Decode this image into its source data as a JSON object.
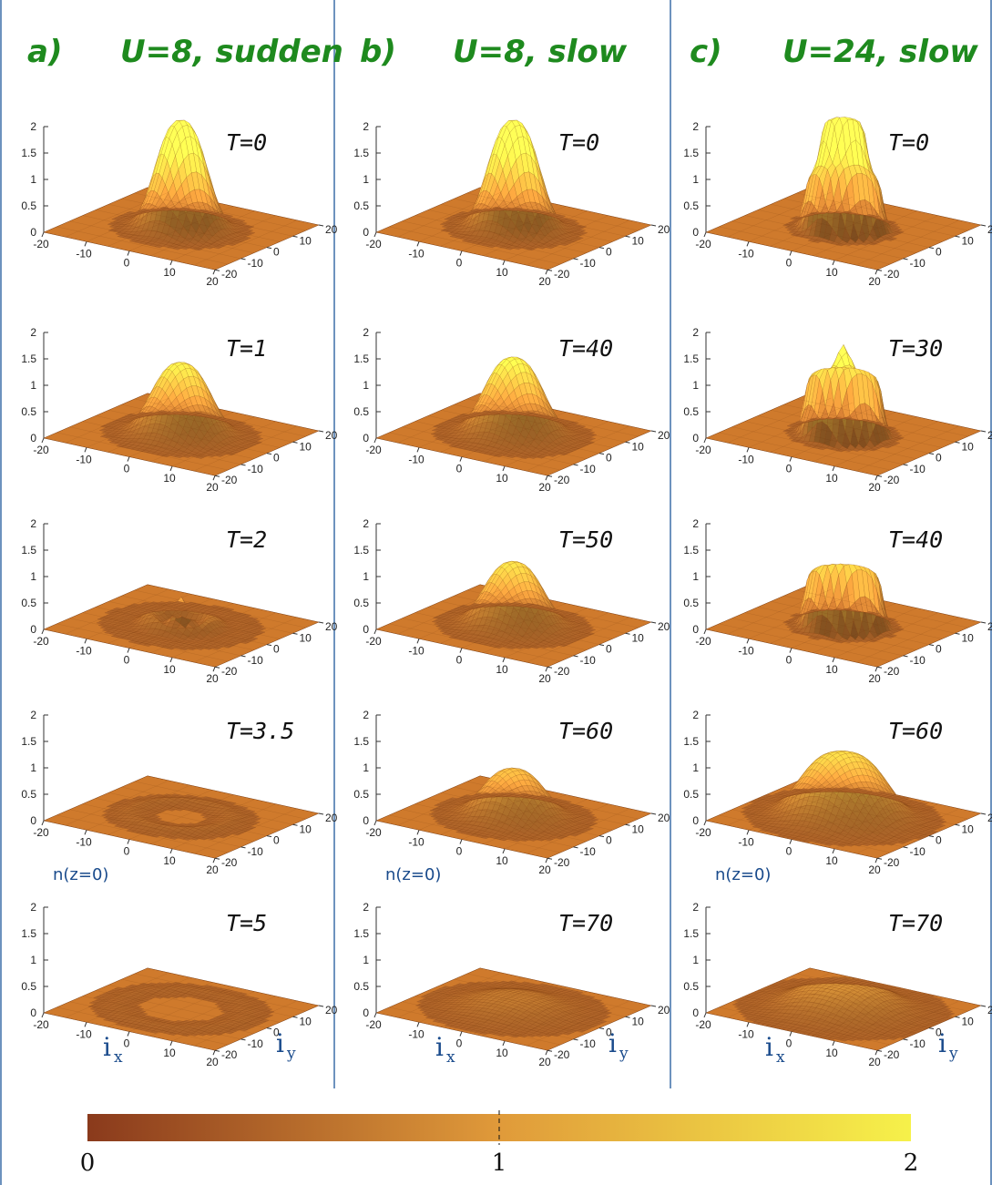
{
  "figure": {
    "colors": {
      "divider": "#3d6fa8",
      "heading": "#1e8a1e",
      "axis_text": "#1a4b8c",
      "surface_low": "#8a3a1c",
      "surface_mid": "#e09a3a",
      "surface_high": "#f6f14a"
    }
  },
  "chart_data": [
    {
      "type": "surface",
      "column": "a",
      "column_label": "a)",
      "title": "U=8, sudden",
      "time_label": "T=0",
      "zlim": [
        0,
        2
      ],
      "zticks": [
        "0",
        "0.5",
        "1",
        "1.5",
        "2"
      ],
      "xticks": [
        "-20",
        "-10",
        "0",
        "10",
        "20"
      ],
      "yticks": [
        "-20",
        "-10",
        "0",
        "10",
        "20"
      ],
      "shape": "peak",
      "peak": 2.05,
      "width": 6.5
    },
    {
      "type": "surface",
      "column": "a",
      "title": "U=8, sudden",
      "time_label": "T=1",
      "zlim": [
        0,
        2
      ],
      "zticks": [
        "0",
        "0.5",
        "1",
        "1.5",
        "2"
      ],
      "xticks": [
        "-20",
        "-10",
        "0",
        "10",
        "20"
      ],
      "yticks": [
        "-20",
        "-10",
        "0",
        "10",
        "20"
      ],
      "shape": "peak",
      "peak": 1.35,
      "width": 7.5
    },
    {
      "type": "surface",
      "column": "a",
      "title": "U=8, sudden",
      "time_label": "T=2",
      "zlim": [
        0,
        2
      ],
      "zticks": [
        "0",
        "0.5",
        "1",
        "1.5",
        "2"
      ],
      "xticks": [
        "-20",
        "-10",
        "0",
        "10",
        "20"
      ],
      "yticks": [
        "-20",
        "-10",
        "0",
        "10",
        "20"
      ],
      "shape": "ripple",
      "peak": 0.55,
      "width": 7.0
    },
    {
      "type": "surface",
      "column": "a",
      "title": "U=8, sudden",
      "time_label": "T=3.5",
      "zlim": [
        0,
        2
      ],
      "zticks": [
        "0",
        "0.5",
        "1",
        "1.5",
        "2"
      ],
      "xticks": [
        "-20",
        "-10",
        "0",
        "10",
        "20"
      ],
      "yticks": [
        "-20",
        "-10",
        "0",
        "10",
        "20"
      ],
      "shape": "ring",
      "peak": 0.08,
      "width": 10.0
    },
    {
      "type": "surface",
      "column": "a",
      "title": "U=8, sudden",
      "time_label": "T=5",
      "zlabel": "n(z=0)",
      "xlabel": "i",
      "xlabel_sub": "x",
      "ylabel": "i",
      "ylabel_sub": "y",
      "zlim": [
        0,
        2
      ],
      "zticks": [
        "0",
        "0.5",
        "1",
        "1.5",
        "2"
      ],
      "xticks": [
        "-20",
        "-10",
        "0",
        "10",
        "20"
      ],
      "yticks": [
        "-20",
        "-10",
        "0",
        "10",
        "20"
      ],
      "shape": "ring",
      "peak": 0.04,
      "width": 13.0
    },
    {
      "type": "surface",
      "column": "b",
      "column_label": "b)",
      "title": "U=8, slow",
      "time_label": "T=0",
      "zlim": [
        0,
        2
      ],
      "zticks": [
        "0",
        "0.5",
        "1",
        "1.5",
        "2"
      ],
      "xticks": [
        "-20",
        "-10",
        "0",
        "10",
        "20"
      ],
      "yticks": [
        "-20",
        "-10",
        "0",
        "10",
        "20"
      ],
      "shape": "peak",
      "peak": 2.05,
      "width": 6.5
    },
    {
      "type": "surface",
      "column": "b",
      "title": "U=8, slow",
      "time_label": "T=40",
      "zlim": [
        0,
        2
      ],
      "zticks": [
        "0",
        "0.5",
        "1",
        "1.5",
        "2"
      ],
      "xticks": [
        "-20",
        "-10",
        "0",
        "10",
        "20"
      ],
      "yticks": [
        "-20",
        "-10",
        "0",
        "10",
        "20"
      ],
      "shape": "peak",
      "peak": 1.45,
      "width": 7.5
    },
    {
      "type": "surface",
      "column": "b",
      "title": "U=8, slow",
      "time_label": "T=50",
      "zlim": [
        0,
        2
      ],
      "zticks": [
        "0",
        "0.5",
        "1",
        "1.5",
        "2"
      ],
      "xticks": [
        "-20",
        "-10",
        "0",
        "10",
        "20"
      ],
      "yticks": [
        "-20",
        "-10",
        "0",
        "10",
        "20"
      ],
      "shape": "peak",
      "peak": 1.2,
      "width": 7.5
    },
    {
      "type": "surface",
      "column": "b",
      "title": "U=8, slow",
      "time_label": "T=60",
      "zlim": [
        0,
        2
      ],
      "zticks": [
        "0",
        "0.5",
        "1",
        "1.5",
        "2"
      ],
      "xticks": [
        "-20",
        "-10",
        "0",
        "10",
        "20"
      ],
      "yticks": [
        "-20",
        "-10",
        "0",
        "10",
        "20"
      ],
      "shape": "peak",
      "peak": 0.9,
      "width": 8.0
    },
    {
      "type": "surface",
      "column": "b",
      "title": "U=8, slow",
      "time_label": "T=70",
      "zlabel": "n(z=0)",
      "xlabel": "i",
      "xlabel_sub": "x",
      "ylabel": "i",
      "ylabel_sub": "y",
      "zlim": [
        0,
        2
      ],
      "zticks": [
        "0",
        "0.5",
        "1",
        "1.5",
        "2"
      ],
      "xticks": [
        "-20",
        "-10",
        "0",
        "10",
        "20"
      ],
      "yticks": [
        "-20",
        "-10",
        "0",
        "10",
        "20"
      ],
      "shape": "dome",
      "peak": 0.25,
      "width": 11.0
    },
    {
      "type": "surface",
      "column": "c",
      "column_label": "c)",
      "title": "U=24, slow",
      "time_label": "T=0",
      "zlim": [
        0,
        2
      ],
      "zticks": [
        "0",
        "0.5",
        "1",
        "1.5",
        "2"
      ],
      "xticks": [
        "-20",
        "-10",
        "0",
        "10",
        "20"
      ],
      "yticks": [
        "-20",
        "-10",
        "0",
        "10",
        "20"
      ],
      "shape": "wedding",
      "peak": 2.05,
      "width": 8.0
    },
    {
      "type": "surface",
      "column": "c",
      "title": "U=24, slow",
      "time_label": "T=30",
      "zlim": [
        0,
        2
      ],
      "zticks": [
        "0",
        "0.5",
        "1",
        "1.5",
        "2"
      ],
      "xticks": [
        "-20",
        "-10",
        "0",
        "10",
        "20"
      ],
      "yticks": [
        "-20",
        "-10",
        "0",
        "10",
        "20"
      ],
      "shape": "plateau_spike",
      "peak": 1.7,
      "width": 8.0
    },
    {
      "type": "surface",
      "column": "c",
      "title": "U=24, slow",
      "time_label": "T=40",
      "zlim": [
        0,
        2
      ],
      "zticks": [
        "0",
        "0.5",
        "1",
        "1.5",
        "2"
      ],
      "xticks": [
        "-20",
        "-10",
        "0",
        "10",
        "20"
      ],
      "yticks": [
        "-20",
        "-10",
        "0",
        "10",
        "20"
      ],
      "shape": "plateau",
      "peak": 1.02,
      "width": 8.0
    },
    {
      "type": "surface",
      "column": "c",
      "title": "U=24, slow",
      "time_label": "T=60",
      "zlim": [
        0,
        2
      ],
      "zticks": [
        "0",
        "0.5",
        "1",
        "1.5",
        "2"
      ],
      "xticks": [
        "-20",
        "-10",
        "0",
        "10",
        "20"
      ],
      "yticks": [
        "-20",
        "-10",
        "0",
        "10",
        "20"
      ],
      "shape": "dome",
      "peak": 1.2,
      "width": 10.5
    },
    {
      "type": "surface",
      "column": "c",
      "title": "U=24, slow",
      "time_label": "T=70",
      "zlabel": "n(z=0)",
      "xlabel": "i",
      "xlabel_sub": "x",
      "ylabel": "i",
      "ylabel_sub": "y",
      "zlim": [
        0,
        2
      ],
      "zticks": [
        "0",
        "0.5",
        "1",
        "1.5",
        "2"
      ],
      "xticks": [
        "-20",
        "-10",
        "0",
        "10",
        "20"
      ],
      "yticks": [
        "-20",
        "-10",
        "0",
        "10",
        "20"
      ],
      "shape": "dome",
      "peak": 0.5,
      "width": 12.0
    },
    {
      "type": "colorbar",
      "range": [
        0,
        2
      ],
      "ticks": [
        "0",
        "1",
        "2"
      ],
      "tick_values": [
        0,
        1,
        2
      ],
      "colormap": [
        "#8a3a1c",
        "#e09a3a",
        "#f6f14a"
      ]
    }
  ]
}
